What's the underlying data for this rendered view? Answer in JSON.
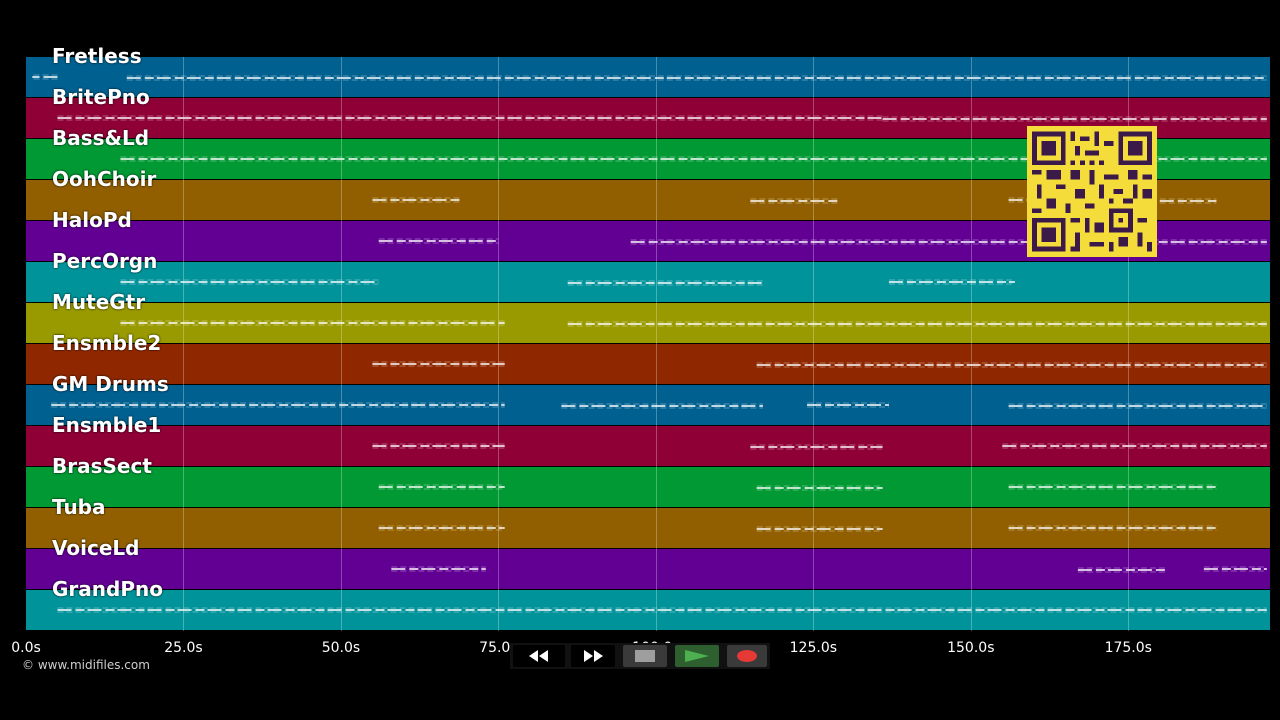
{
  "tracks": [
    {
      "name": "Fretless",
      "color": "#00608f",
      "notes": [
        [
          5,
          1
        ],
        [
          16,
          197
        ]
      ]
    },
    {
      "name": "BritePno",
      "color": "#8f0036",
      "notes": [
        [
          5,
          136
        ],
        [
          136,
          197
        ]
      ]
    },
    {
      "name": "Bass&Ld",
      "color": "#009933",
      "notes": [
        [
          15,
          197
        ]
      ]
    },
    {
      "name": "OohChoir",
      "color": "#915f00",
      "notes": [
        [
          55,
          69
        ],
        [
          115,
          129
        ],
        [
          156,
          171
        ],
        [
          180,
          189
        ]
      ]
    },
    {
      "name": "HaloPd",
      "color": "#620094",
      "notes": [
        [
          56,
          75
        ],
        [
          96,
          197
        ]
      ]
    },
    {
      "name": "PercOrgn",
      "color": "#00939a",
      "notes": [
        [
          15,
          56
        ],
        [
          86,
          117
        ],
        [
          137,
          157
        ]
      ]
    },
    {
      "name": "MuteGtr",
      "color": "#999900",
      "notes": [
        [
          15,
          76
        ],
        [
          86,
          197
        ]
      ]
    },
    {
      "name": "Ensmble2",
      "color": "#8f2800",
      "notes": [
        [
          55,
          76
        ],
        [
          116,
          197
        ]
      ]
    },
    {
      "name": "GM Drums",
      "color": "#00608f",
      "notes": [
        [
          4,
          76
        ],
        [
          85,
          117
        ],
        [
          124,
          137
        ],
        [
          156,
          197
        ]
      ]
    },
    {
      "name": "Ensmble1",
      "color": "#8f0036",
      "notes": [
        [
          55,
          76
        ],
        [
          115,
          136
        ],
        [
          155,
          197
        ]
      ]
    },
    {
      "name": "BrasSect",
      "color": "#009933",
      "notes": [
        [
          56,
          76
        ],
        [
          116,
          136
        ],
        [
          156,
          189
        ]
      ]
    },
    {
      "name": "Tuba",
      "color": "#915f00",
      "notes": [
        [
          56,
          76
        ],
        [
          116,
          136
        ],
        [
          156,
          189
        ]
      ]
    },
    {
      "name": "VoiceLd",
      "color": "#620094",
      "notes": [
        [
          58,
          73
        ],
        [
          167,
          181
        ],
        [
          187,
          197
        ]
      ]
    },
    {
      "name": "GrandPno",
      "color": "#00939a",
      "notes": [
        [
          5,
          197
        ]
      ]
    }
  ],
  "timeline": {
    "xmin": 0,
    "xmax": 197.5,
    "ticks": [
      {
        "value": 0,
        "label": "0.0s"
      },
      {
        "value": 25,
        "label": "25.0s"
      },
      {
        "value": 50,
        "label": "50.0s"
      },
      {
        "value": 75,
        "label": "75.0s"
      },
      {
        "value": 100,
        "label": "100.0s"
      },
      {
        "value": 125,
        "label": "125.0s"
      },
      {
        "value": 150,
        "label": "150.0s"
      },
      {
        "value": 175,
        "label": "175.0s"
      }
    ]
  },
  "copyright": "© www.midifiles.com",
  "controls": {
    "rewind_icon": "rewind-icon",
    "fastforward_icon": "fast-forward-icon",
    "stop_icon": "stop-icon",
    "play_icon": "play-icon",
    "record_icon": "record-icon",
    "play_color": "#4caf50",
    "record_color": "#e53935"
  }
}
